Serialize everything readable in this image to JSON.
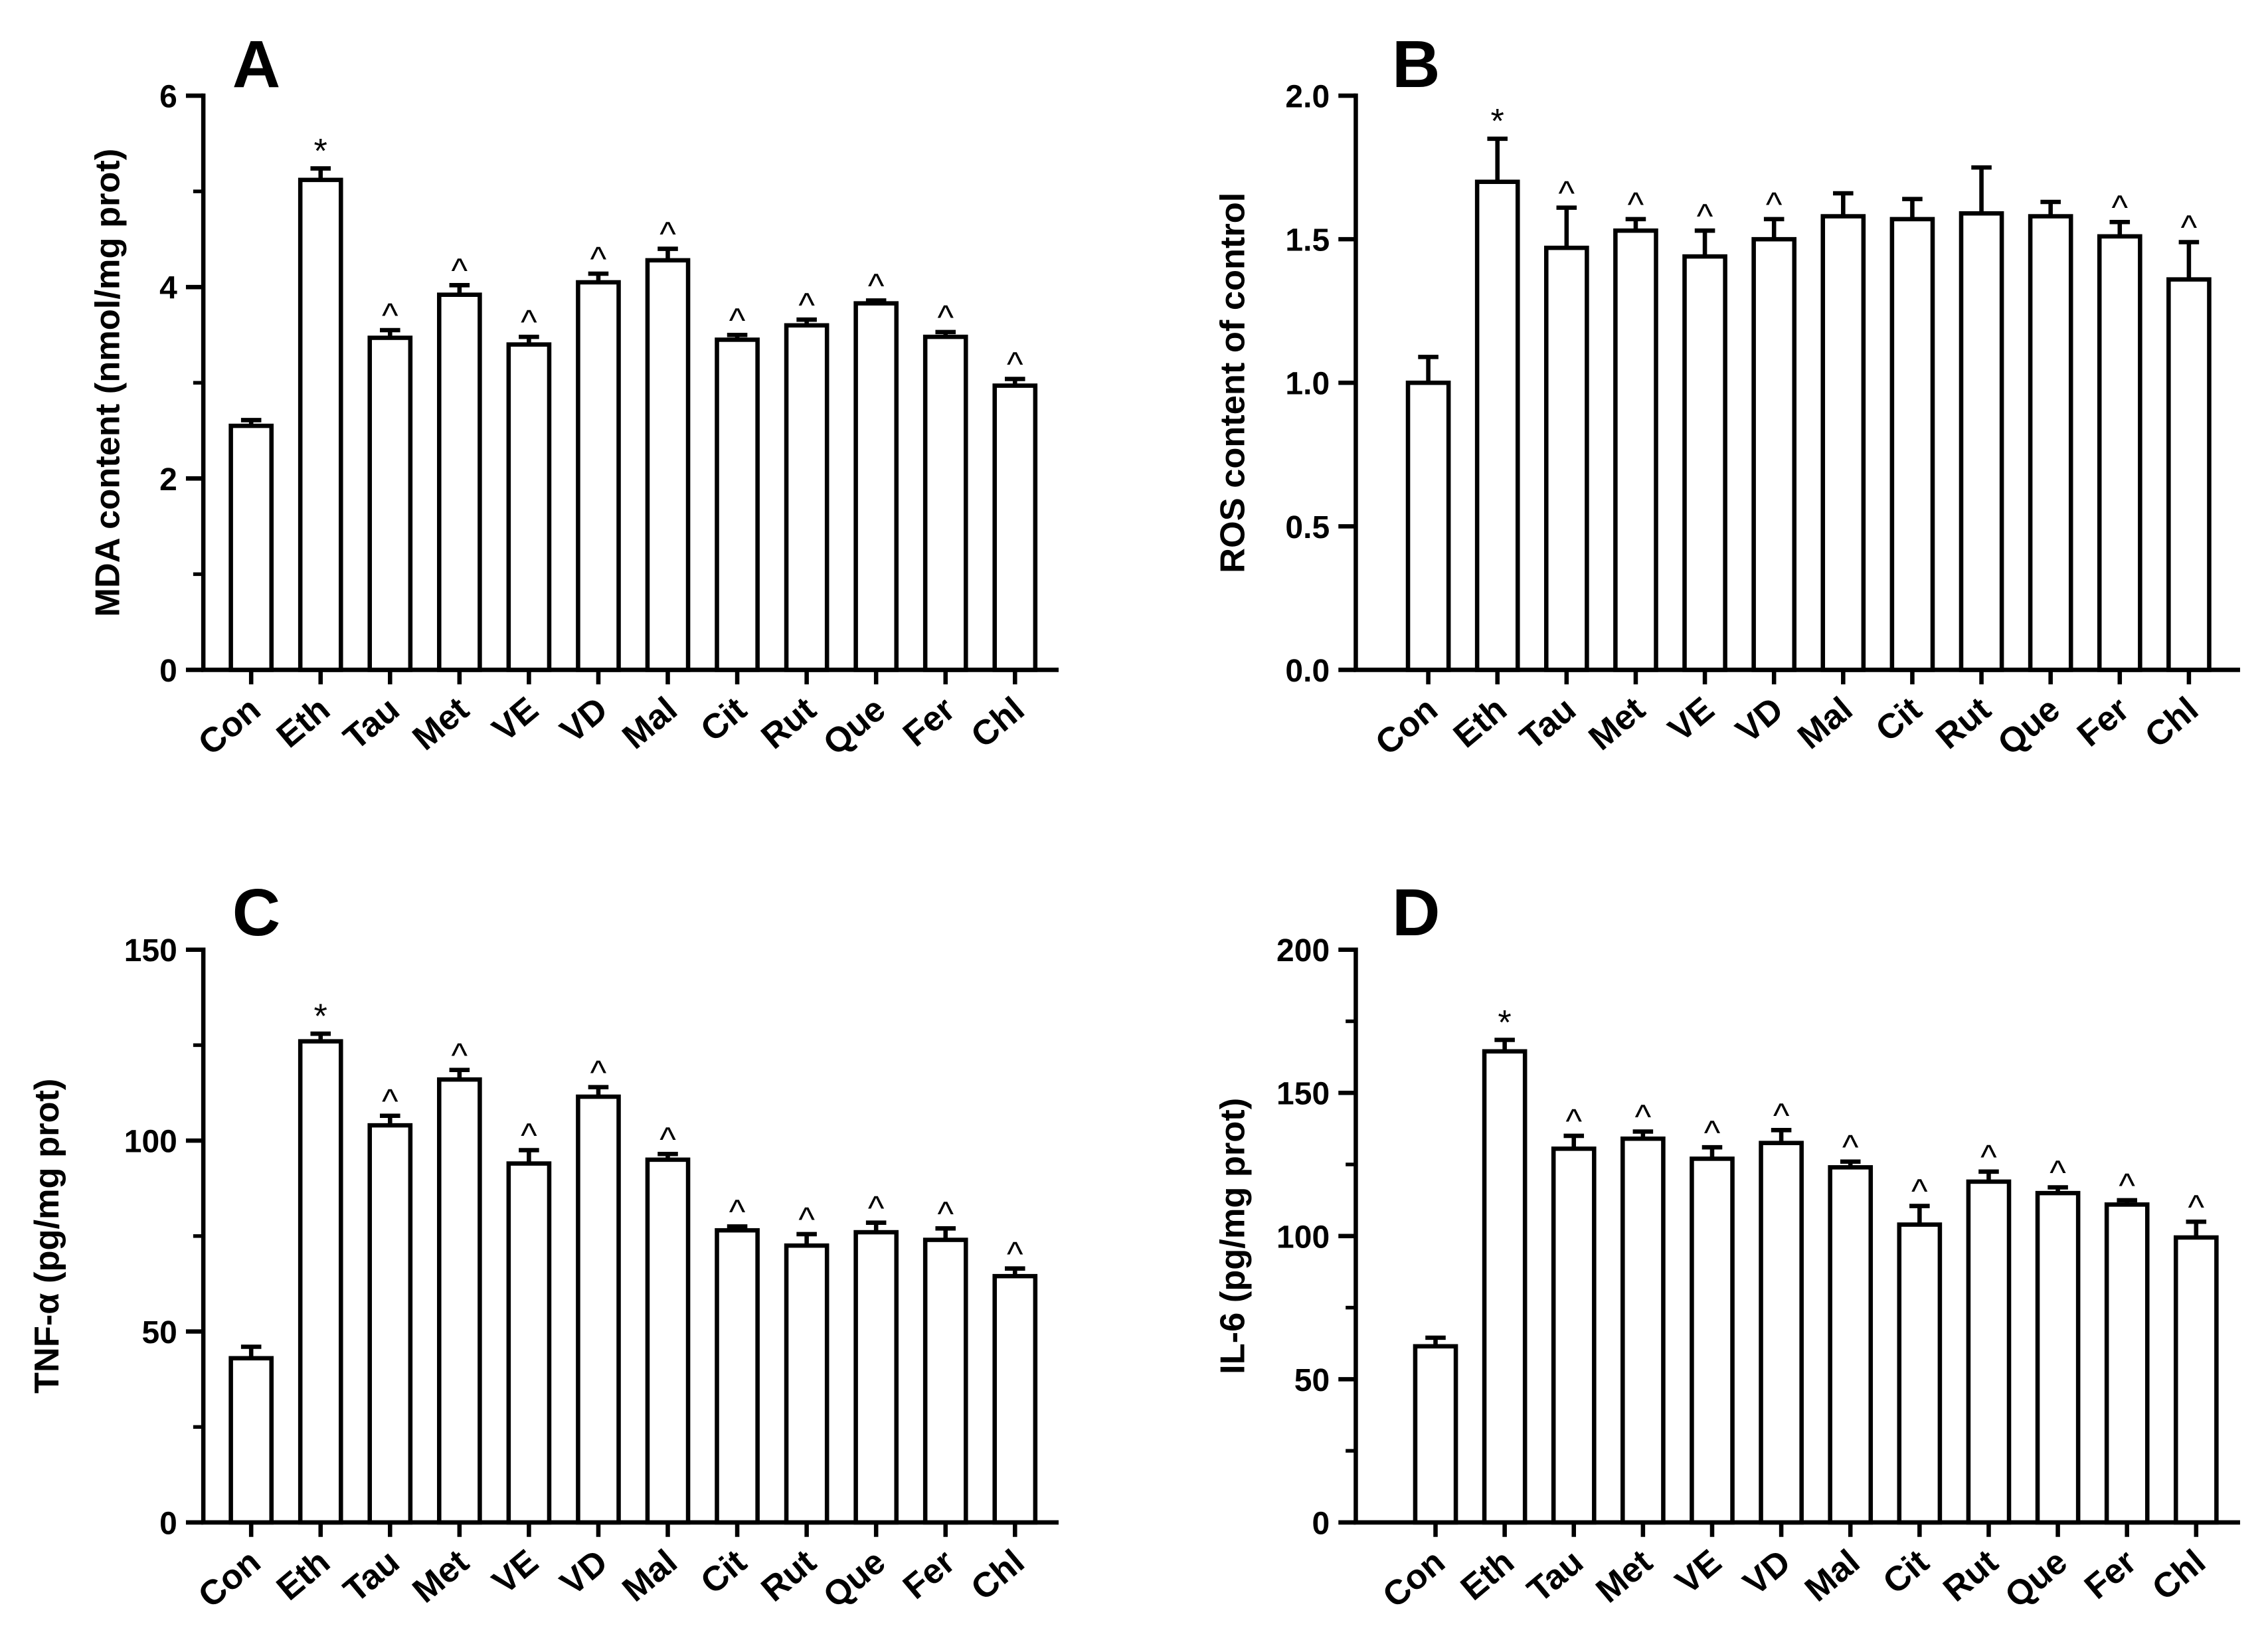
{
  "chart_data": [
    {
      "type": "bar",
      "label": "A",
      "y_label": "MDA content (nmol/mg prot)",
      "categories": [
        "Con",
        "Eth",
        "Tau",
        "Met",
        "VE",
        "VD",
        "Mal",
        "Cit",
        "Rut",
        "Que",
        "Fer",
        "Chl"
      ],
      "values": [
        2.55,
        5.12,
        3.47,
        3.92,
        3.4,
        4.05,
        4.28,
        3.45,
        3.6,
        3.83,
        3.48,
        2.97
      ],
      "errors": [
        0.06,
        0.12,
        0.08,
        0.1,
        0.08,
        0.09,
        0.12,
        0.05,
        0.06,
        0.03,
        0.05,
        0.07
      ],
      "annotations": [
        null,
        "*",
        "^",
        "^",
        "^",
        "^",
        "^",
        "^",
        "^",
        "^",
        "^",
        "^"
      ],
      "color": "#ffffff",
      "edge_color": "#000000",
      "ylim": [
        0,
        6
      ],
      "yticks": [
        0,
        2,
        4,
        6
      ],
      "minor_yticks": [
        1,
        3,
        5
      ]
    },
    {
      "type": "bar",
      "label": "B",
      "y_label": "ROS content of control",
      "categories": [
        "Con",
        "Eth",
        "Tau",
        "Met",
        "VE",
        "VD",
        "Mal",
        "Cit",
        "Rut",
        "Que",
        "Fer",
        "Chl"
      ],
      "values": [
        1.0,
        1.7,
        1.47,
        1.53,
        1.44,
        1.5,
        1.58,
        1.57,
        1.59,
        1.58,
        1.51,
        1.36
      ],
      "errors": [
        0.09,
        0.15,
        0.14,
        0.04,
        0.09,
        0.07,
        0.08,
        0.07,
        0.16,
        0.05,
        0.05,
        0.13
      ],
      "annotations": [
        null,
        "*",
        "^",
        "^",
        "^",
        "^",
        null,
        null,
        null,
        null,
        "^",
        "^"
      ],
      "color": "#ffffff",
      "edge_color": "#000000",
      "ylim": [
        0,
        2
      ],
      "yticks": [
        {
          "value": 0,
          "label": "0.0"
        },
        0.5,
        {
          "value": 1,
          "label": "1.0"
        },
        1.5,
        {
          "value": 2,
          "label": "2.0"
        }
      ]
    },
    {
      "type": "bar",
      "label": "C",
      "y_label": "TNF-α (pg/mg prot)",
      "categories": [
        "Con",
        "Eth",
        "Tau",
        "Met",
        "VE",
        "VD",
        "Mal",
        "Cit",
        "Rut",
        "Que",
        "Fer",
        "Chl"
      ],
      "values": [
        43,
        126,
        104,
        116,
        94,
        111.5,
        95,
        76.5,
        72.5,
        76,
        74,
        64.5
      ],
      "errors": [
        3,
        2,
        2.5,
        2.5,
        3.5,
        2.5,
        1.5,
        1,
        3,
        2.5,
        3,
        2
      ],
      "annotations": [
        null,
        "*",
        "^",
        "^",
        "^",
        "^",
        "^",
        "^",
        "^",
        "^",
        "^",
        "^"
      ],
      "color": "#ffffff",
      "edge_color": "#000000",
      "ylim": [
        0,
        150
      ],
      "yticks": [
        0,
        50,
        100,
        150
      ],
      "minor_yticks": [
        25,
        75,
        125
      ]
    },
    {
      "type": "bar",
      "label": "D",
      "y_label": "IL-6 (pg/mg prot)",
      "categories": [
        "Con",
        "Eth",
        "Tau",
        "Met",
        "VE",
        "VD",
        "Mal",
        "Cit",
        "Rut",
        "Que",
        "Fer",
        "Chl"
      ],
      "values": [
        61.5,
        164.5,
        130.5,
        134,
        127,
        132.5,
        124,
        104,
        119,
        115,
        111,
        99.5
      ],
      "errors": [
        3,
        4,
        4.5,
        2.5,
        4,
        4.5,
        2,
        6.5,
        3.5,
        2,
        1.5,
        5.5
      ],
      "annotations": [
        null,
        "*",
        "^",
        "^",
        "^",
        "^",
        "^",
        "^",
        "^",
        "^",
        "^",
        "^"
      ],
      "color": "#ffffff",
      "edge_color": "#000000",
      "ylim": [
        0,
        200
      ],
      "yticks": [
        0,
        50,
        100,
        150,
        200
      ],
      "minor_yticks": [
        25,
        75,
        125,
        175
      ]
    }
  ]
}
